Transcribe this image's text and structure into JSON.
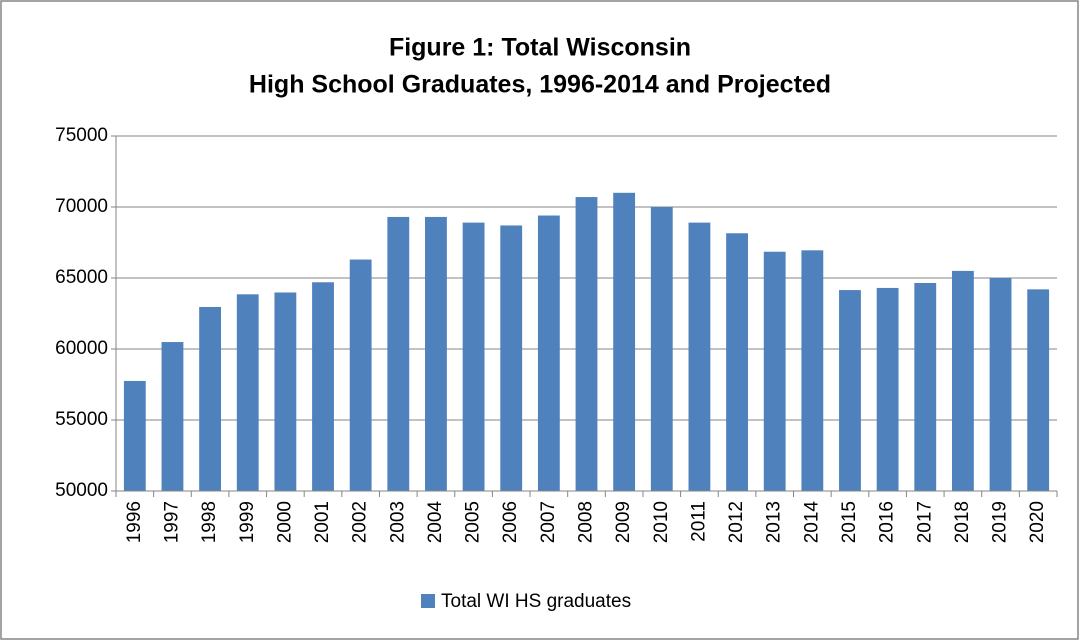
{
  "chart_data": {
    "type": "bar",
    "title": [
      "Figure 1: Total Wisconsin",
      "High School Graduates, 1996-2014 and Projected"
    ],
    "categories": [
      "1996",
      "1997",
      "1998",
      "1999",
      "2000",
      "2001",
      "2002",
      "2003",
      "2004",
      "2005",
      "2006",
      "2007",
      "2008",
      "2009",
      "2010",
      "2011",
      "2012",
      "2013",
      "2014",
      "2015",
      "2016",
      "2017",
      "2018",
      "2019",
      "2020"
    ],
    "series": [
      {
        "name": "Total WI HS graduates",
        "color": "#4f81bd",
        "values": [
          57750,
          60490,
          62960,
          63850,
          63980,
          64700,
          66300,
          69300,
          69300,
          68900,
          68700,
          69400,
          70700,
          71000,
          70000,
          68900,
          68150,
          66850,
          66950,
          64150,
          64300,
          64650,
          65500,
          65000,
          64200
        ]
      }
    ],
    "ylim": [
      50000,
      75000
    ],
    "yticks": [
      50000,
      55000,
      60000,
      65000,
      70000,
      75000
    ],
    "grid": true,
    "legend": "bottom"
  }
}
